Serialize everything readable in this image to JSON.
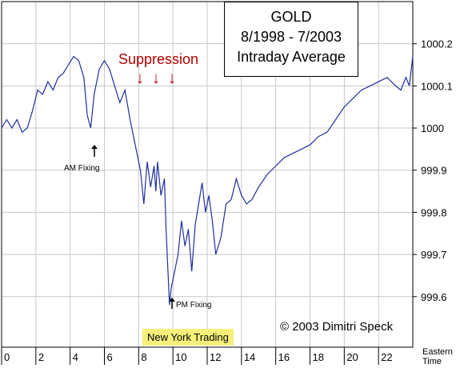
{
  "title_lines": [
    "GOLD",
    "8/1998 - 7/2003",
    "Intraday Average"
  ],
  "annotations": {
    "suppression": "Suppression",
    "am_fixing": "AM Fixing",
    "pm_fixing": "PM Fixing",
    "ny_trading": "New York Trading",
    "copyright": "© 2003 Dimitri Speck",
    "eastern_time": [
      "Eastern",
      "Time"
    ]
  },
  "colors": {
    "line": "#1f2f9e",
    "suppression": "#b30000",
    "highlight": "#f6f07a",
    "grid": "#c8c8c8"
  },
  "chart_data": {
    "type": "line",
    "title": "GOLD 8/1998 - 7/2003 Intraday Average",
    "xlabel": "Eastern Time",
    "ylabel": "",
    "xlim": [
      0,
      24
    ],
    "ylim": [
      999.48,
      1000.3
    ],
    "x_ticks": [
      0,
      2,
      4,
      6,
      8,
      10,
      12,
      14,
      16,
      18,
      20,
      22
    ],
    "y_ticks": [
      999.6,
      999.7,
      999.8,
      999.9,
      1000,
      1000.1,
      1000.2
    ],
    "y_tick_labels": [
      "999.6",
      "999.7",
      "999.8",
      "999.9",
      "1000",
      "1000.1",
      "1000.2"
    ],
    "grid": true,
    "series": [
      {
        "values_xy": [
          [
            0.0,
            1000.0
          ],
          [
            0.3,
            1000.02
          ],
          [
            0.6,
            1000.0
          ],
          [
            0.9,
            1000.02
          ],
          [
            1.2,
            999.99
          ],
          [
            1.5,
            1000.0
          ],
          [
            1.8,
            1000.04
          ],
          [
            2.1,
            1000.09
          ],
          [
            2.4,
            1000.08
          ],
          [
            2.7,
            1000.11
          ],
          [
            3.0,
            1000.09
          ],
          [
            3.3,
            1000.12
          ],
          [
            3.6,
            1000.13
          ],
          [
            3.9,
            1000.15
          ],
          [
            4.2,
            1000.17
          ],
          [
            4.5,
            1000.16
          ],
          [
            4.8,
            1000.12
          ],
          [
            5.0,
            1000.03
          ],
          [
            5.2,
            1000.0
          ],
          [
            5.4,
            1000.08
          ],
          [
            5.7,
            1000.14
          ],
          [
            6.0,
            1000.16
          ],
          [
            6.3,
            1000.14
          ],
          [
            6.6,
            1000.1
          ],
          [
            6.9,
            1000.06
          ],
          [
            7.2,
            1000.09
          ],
          [
            7.5,
            1000.02
          ],
          [
            7.7,
            999.98
          ],
          [
            7.9,
            999.94
          ],
          [
            8.1,
            999.9
          ],
          [
            8.3,
            999.82
          ],
          [
            8.5,
            999.92
          ],
          [
            8.7,
            999.86
          ],
          [
            8.9,
            999.91
          ],
          [
            9.0,
            999.85
          ],
          [
            9.1,
            999.92
          ],
          [
            9.3,
            999.84
          ],
          [
            9.5,
            999.88
          ],
          [
            9.6,
            999.76
          ],
          [
            9.7,
            999.67
          ],
          [
            9.8,
            999.58
          ],
          [
            9.9,
            999.62
          ],
          [
            10.1,
            999.66
          ],
          [
            10.3,
            999.7
          ],
          [
            10.5,
            999.78
          ],
          [
            10.7,
            999.72
          ],
          [
            10.9,
            999.76
          ],
          [
            11.1,
            999.66
          ],
          [
            11.3,
            999.77
          ],
          [
            11.5,
            999.82
          ],
          [
            11.7,
            999.87
          ],
          [
            11.9,
            999.8
          ],
          [
            12.1,
            999.84
          ],
          [
            12.3,
            999.78
          ],
          [
            12.5,
            999.7
          ],
          [
            12.8,
            999.74
          ],
          [
            13.1,
            999.82
          ],
          [
            13.4,
            999.83
          ],
          [
            13.7,
            999.88
          ],
          [
            14.0,
            999.84
          ],
          [
            14.3,
            999.82
          ],
          [
            14.6,
            999.83
          ],
          [
            15.0,
            999.86
          ],
          [
            15.5,
            999.89
          ],
          [
            16.0,
            999.91
          ],
          [
            16.5,
            999.93
          ],
          [
            17.0,
            999.94
          ],
          [
            17.5,
            999.95
          ],
          [
            18.0,
            999.96
          ],
          [
            18.5,
            999.98
          ],
          [
            19.0,
            999.99
          ],
          [
            19.5,
            1000.02
          ],
          [
            20.0,
            1000.05
          ],
          [
            20.5,
            1000.07
          ],
          [
            21.0,
            1000.09
          ],
          [
            21.5,
            1000.1
          ],
          [
            22.0,
            1000.11
          ],
          [
            22.5,
            1000.12
          ],
          [
            23.0,
            1000.1
          ],
          [
            23.3,
            1000.09
          ],
          [
            23.6,
            1000.12
          ],
          [
            23.8,
            1000.1
          ],
          [
            24.0,
            1000.17
          ]
        ]
      }
    ]
  }
}
